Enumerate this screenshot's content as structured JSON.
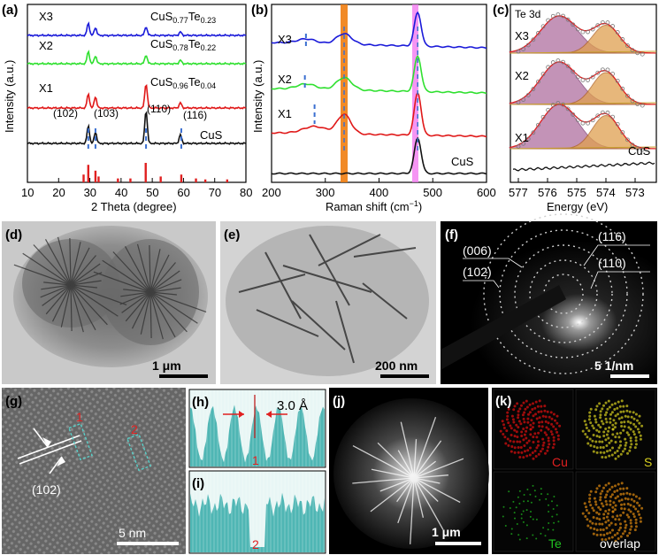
{
  "panels": {
    "a": {
      "letter": "(a)",
      "ylabel": "Intensity (a.u.)",
      "xlabel": "2 Theta (degree)",
      "ticks": [
        "10",
        "20",
        "30",
        "40",
        "50",
        "60",
        "70",
        "80"
      ],
      "series": [
        {
          "name": "X3",
          "formula": "CuS0.77Te0.23",
          "color": "#1a1ad9"
        },
        {
          "name": "X2",
          "formula": "CuS0.78Te0.22",
          "color": "#2fe02f"
        },
        {
          "name": "X1",
          "formula": "CuS0.96Te0.04",
          "color": "#e01818"
        },
        {
          "name": "CuS",
          "formula": "CuS",
          "color": "#111111"
        }
      ],
      "formulas": {
        "x3": {
          "base": "CuS",
          "s": "0.77",
          "el": "Te",
          "t": "0.23"
        },
        "x2": {
          "base": "CuS",
          "s": "0.78",
          "el": "Te",
          "t": "0.22"
        },
        "x1": {
          "base": "CuS",
          "s": "0.96",
          "el": "Te",
          "t": "0.04"
        }
      },
      "cus_label": "CuS",
      "peaks": [
        "(102)",
        "(103)",
        "(110)",
        "(116)"
      ]
    },
    "b": {
      "letter": "(b)",
      "ylabel": "Intensity (a.u.)",
      "xlabel": "Raman shift (cm",
      "xlabel_sup": "−1",
      "xlabel_end": ")",
      "ticks": [
        "200",
        "300",
        "400",
        "500",
        "600"
      ],
      "series": [
        "X3",
        "X2",
        "X1"
      ],
      "cus_label": "CuS"
    },
    "c": {
      "letter": "(c)",
      "title": "Te 3d",
      "ylabel": "",
      "xlabel": "Energy (eV)",
      "ticks": [
        "577",
        "576",
        "575",
        "574",
        "573"
      ],
      "series": [
        "X3",
        "X2",
        "X1"
      ],
      "cus_label": "CuS"
    },
    "d": {
      "letter": "(d)",
      "scale": "1 μm"
    },
    "e": {
      "letter": "(e)",
      "scale": "200 nm"
    },
    "f": {
      "letter": "(f)",
      "scale": "5 1/nm",
      "rings": [
        "(006)",
        "(102)",
        "(116)",
        "(110)"
      ]
    },
    "g": {
      "letter": "(g)",
      "scale": "5 nm",
      "plane": "(102)",
      "mark1": "1",
      "mark2": "2"
    },
    "h": {
      "letter": "(h)",
      "spacing": "3.0 Å",
      "num": "1"
    },
    "i": {
      "letter": "(i)",
      "num": "2"
    },
    "j": {
      "letter": "(j)",
      "scale": "1 μm"
    },
    "k": {
      "letter": "(k)",
      "maps": [
        "Cu",
        "S",
        "Te",
        "overlap"
      ]
    }
  },
  "colors": {
    "x3": "#1a1ad9",
    "x2": "#2fe02f",
    "x1": "#e01818",
    "cus": "#111111",
    "orange_band": "#f07d10",
    "pink_band": "#f27bf0",
    "profile": "#4fb6b4",
    "cu_map": "#e01010",
    "s_map": "#d8d020",
    "te_map": "#20c020",
    "overlap_map": "#e08a10",
    "fit_purple": "#b06fa0",
    "fit_orange": "#e0a050"
  }
}
